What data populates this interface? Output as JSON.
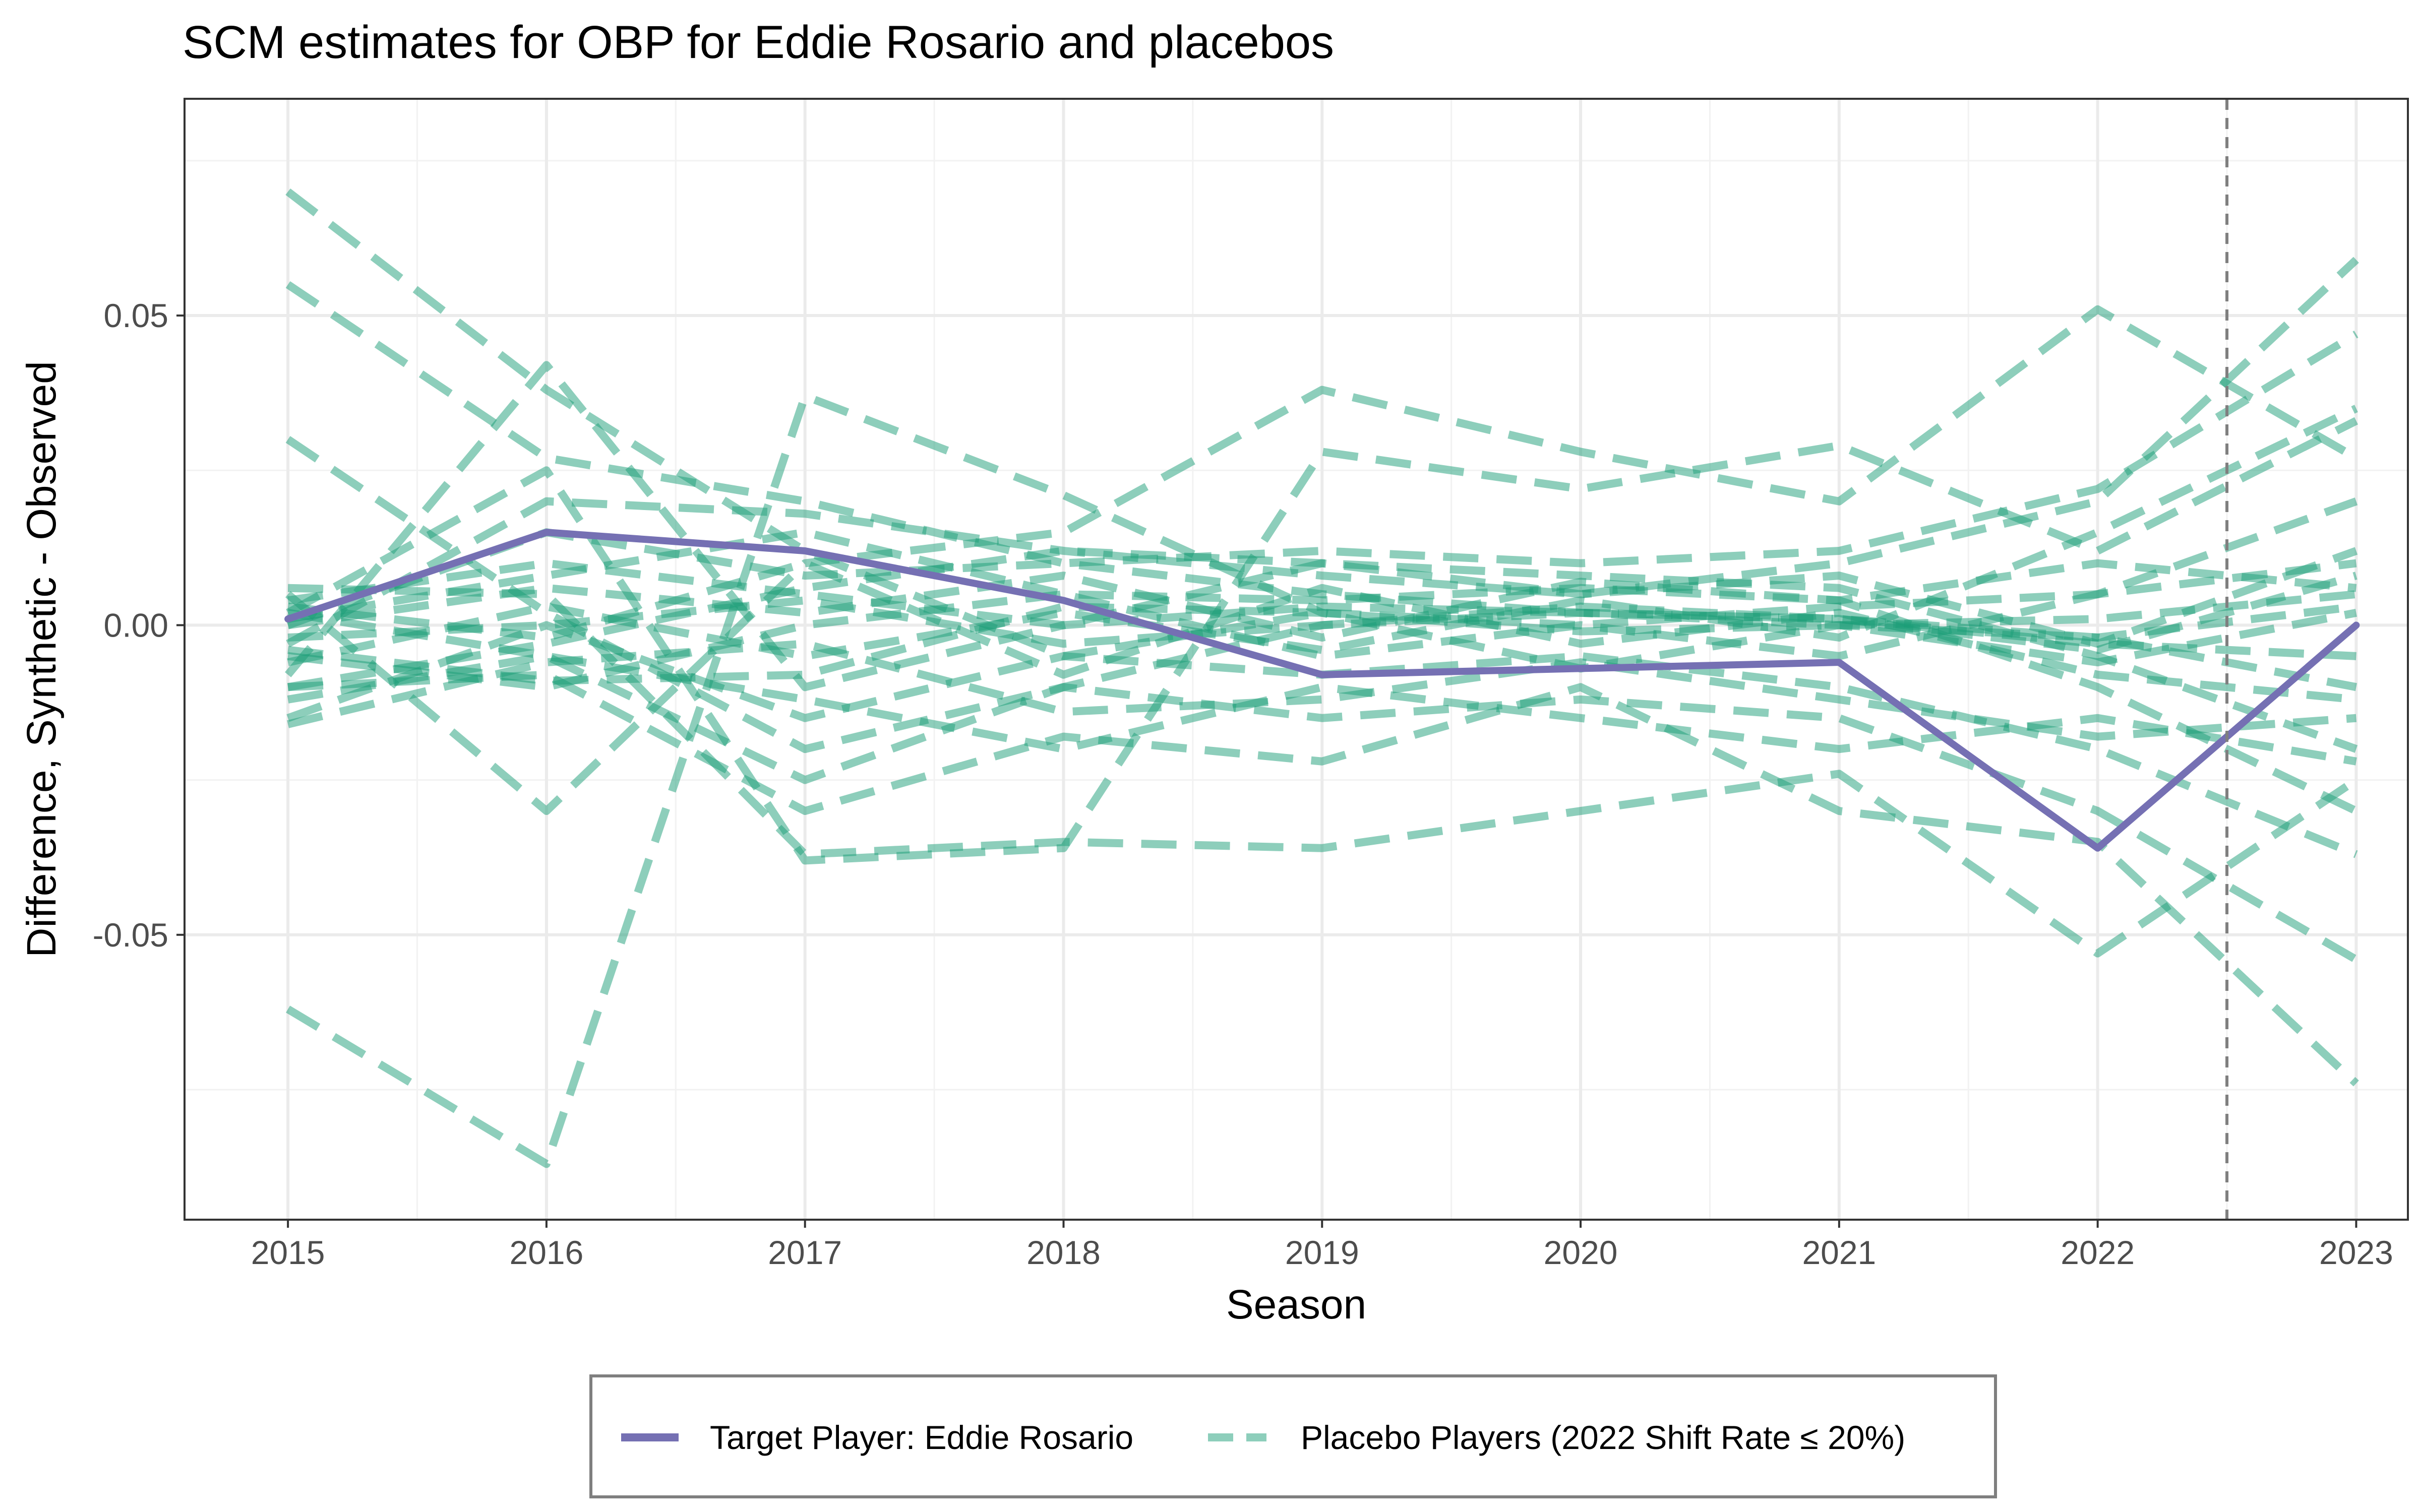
{
  "chart_data": {
    "type": "line",
    "title": "SCM estimates for OBP for Eddie Rosario and placebos",
    "xlabel": "Season",
    "ylabel": "Difference, Synthetic - Observed",
    "x": [
      2015,
      2016,
      2017,
      2018,
      2019,
      2020,
      2021,
      2022,
      2023
    ],
    "x_ticks": [
      "2015",
      "2016",
      "2017",
      "2018",
      "2019",
      "2020",
      "2021",
      "2022",
      "2023"
    ],
    "y_ticks": [
      {
        "value": 0.05,
        "label": "0.05"
      },
      {
        "value": 0.0,
        "label": "0.00"
      },
      {
        "value": -0.05,
        "label": "-0.05"
      }
    ],
    "xlim": [
      2014.6,
      2023.2
    ],
    "ylim": [
      -0.096,
      0.085
    ],
    "grid": true,
    "vline": {
      "x": 2022.5,
      "style": "dashed",
      "color": "#7f7f7f"
    },
    "target_series": {
      "name": "Target Player: Eddie Rosario",
      "color": "#7570b3",
      "values": [
        0.001,
        0.015,
        0.012,
        0.004,
        -0.008,
        -0.007,
        -0.006,
        -0.036,
        0.0
      ]
    },
    "placebo_series": {
      "name": "Placebo Players (2022 Shift Rate ≤ 20%)",
      "color": "#1b9e77",
      "opacity": 0.5,
      "lines": [
        [
          0.07,
          0.038,
          0.012,
          -0.005,
          0.002,
          0.0,
          0.003,
          0.005,
          0.01
        ],
        [
          0.055,
          0.027,
          0.02,
          0.01,
          0.005,
          0.002,
          0.0,
          -0.002,
          0.003
        ],
        [
          0.03,
          0.002,
          -0.02,
          -0.01,
          0.0,
          0.003,
          0.001,
          -0.003,
          -0.005
        ],
        [
          -0.062,
          -0.087,
          0.037,
          0.021,
          0.002,
          -0.001,
          0.0,
          0.001,
          0.005
        ],
        [
          -0.008,
          0.042,
          -0.01,
          0.0,
          0.003,
          0.002,
          0.001,
          -0.002,
          -0.01
        ],
        [
          0.005,
          -0.03,
          0.01,
          0.015,
          0.038,
          0.028,
          0.02,
          0.051,
          0.027
        ],
        [
          0.002,
          0.025,
          -0.038,
          -0.036,
          0.028,
          0.022,
          0.029,
          0.012,
          0.033
        ],
        [
          -0.003,
          0.02,
          0.018,
          0.012,
          0.008,
          0.005,
          0.01,
          0.02,
          0.059
        ],
        [
          0.006,
          0.005,
          -0.037,
          -0.035,
          -0.036,
          -0.03,
          -0.024,
          -0.053,
          -0.025
        ],
        [
          -0.01,
          -0.008,
          -0.03,
          -0.018,
          -0.022,
          -0.01,
          -0.03,
          -0.035,
          -0.074
        ],
        [
          -0.012,
          -0.005,
          -0.025,
          -0.01,
          -0.015,
          -0.012,
          -0.015,
          -0.03,
          -0.054
        ],
        [
          -0.015,
          0.0,
          -0.015,
          -0.005,
          -0.008,
          -0.005,
          -0.01,
          -0.02,
          -0.037
        ],
        [
          0.004,
          0.01,
          0.005,
          0.0,
          0.01,
          0.008,
          0.006,
          -0.005,
          -0.02
        ],
        [
          -0.005,
          -0.01,
          0.0,
          0.005,
          0.004,
          0.006,
          0.004,
          -0.01,
          -0.03
        ],
        [
          0.0,
          0.015,
          0.008,
          0.01,
          0.012,
          0.01,
          0.012,
          0.022,
          0.047
        ],
        [
          -0.01,
          -0.003,
          0.006,
          0.012,
          0.01,
          0.005,
          0.008,
          -0.003,
          0.012
        ],
        [
          0.002,
          -0.005,
          -0.012,
          -0.02,
          -0.01,
          -0.015,
          -0.02,
          -0.015,
          -0.022
        ],
        [
          0.001,
          0.008,
          0.015,
          0.005,
          -0.005,
          0.0,
          -0.005,
          0.005,
          0.02
        ],
        [
          -0.002,
          0.0,
          0.004,
          -0.003,
          0.0,
          0.002,
          0.001,
          -0.004,
          0.008
        ],
        [
          -0.006,
          0.003,
          -0.005,
          0.002,
          -0.004,
          0.004,
          -0.002,
          0.015,
          0.035
        ],
        [
          0.003,
          -0.002,
          0.01,
          -0.008,
          0.006,
          -0.003,
          0.002,
          -0.008,
          -0.012
        ],
        [
          -0.016,
          -0.006,
          -0.003,
          -0.014,
          -0.012,
          -0.006,
          -0.012,
          -0.018,
          -0.015
        ],
        [
          0.0,
          0.006,
          0.002,
          0.008,
          -0.002,
          0.007,
          0.004,
          0.01,
          0.006
        ],
        [
          -0.004,
          -0.009,
          -0.008,
          0.003,
          0.002,
          -0.007,
          0.0,
          -0.006,
          0.002
        ]
      ]
    }
  }
}
